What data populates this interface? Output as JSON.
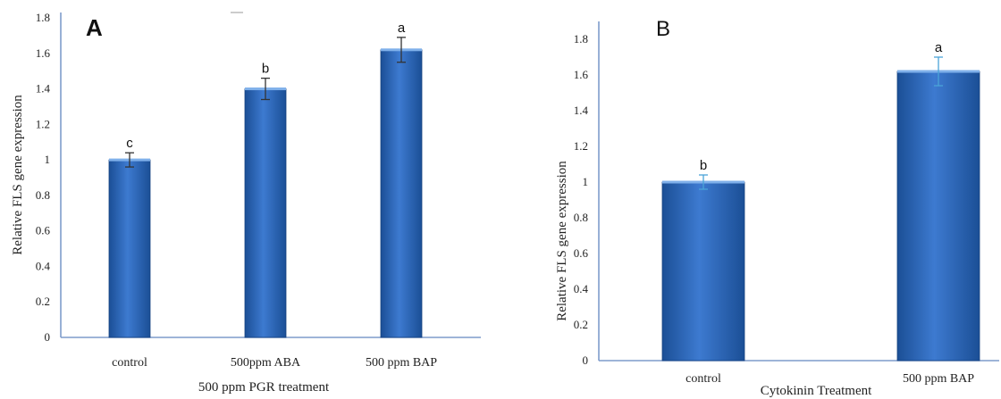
{
  "chart_data": [
    {
      "type": "bar",
      "panel_label": "A",
      "categories": [
        "control",
        "500ppm ABA",
        "500 ppm BAP"
      ],
      "values": [
        1.0,
        1.4,
        1.62
      ],
      "errors": [
        0.04,
        0.06,
        0.07
      ],
      "significance": [
        "c",
        "b",
        "a"
      ],
      "ylim": [
        0,
        1.8
      ],
      "yticks": [
        "0",
        "0.2",
        "0.4",
        "0.6",
        "0.8",
        "1",
        "1.2",
        "1.4",
        "1.6",
        "1.8"
      ],
      "xlabel": "500 ppm PGR treatment",
      "ylabel": "Relative FLS gene expression",
      "grid": false,
      "colors": {
        "bar_light": "#5b8fd6",
        "bar_mid": "#2f6cc0",
        "bar_dark": "#1b4f96",
        "axis": "#7f9ccc",
        "error": "#333333"
      }
    },
    {
      "type": "bar",
      "panel_label": "B",
      "categories": [
        "control",
        "500 ppm BAP"
      ],
      "values": [
        1.0,
        1.62
      ],
      "errors": [
        0.04,
        0.08
      ],
      "significance": [
        "b",
        "a"
      ],
      "ylim": [
        0,
        1.8
      ],
      "yticks": [
        "0",
        "0.2",
        "0.4",
        "0.6",
        "0.8",
        "1",
        "1.2",
        "1.4",
        "1.6",
        "1.8"
      ],
      "xlabel": "Cytokinin Treatment",
      "ylabel": "Relative FLS gene expression",
      "grid": false,
      "colors": {
        "bar_light": "#5b8fd6",
        "bar_mid": "#2f6cc0",
        "bar_dark": "#1b4f96",
        "axis": "#7f9ccc",
        "error": "#4aa3d8"
      }
    }
  ]
}
